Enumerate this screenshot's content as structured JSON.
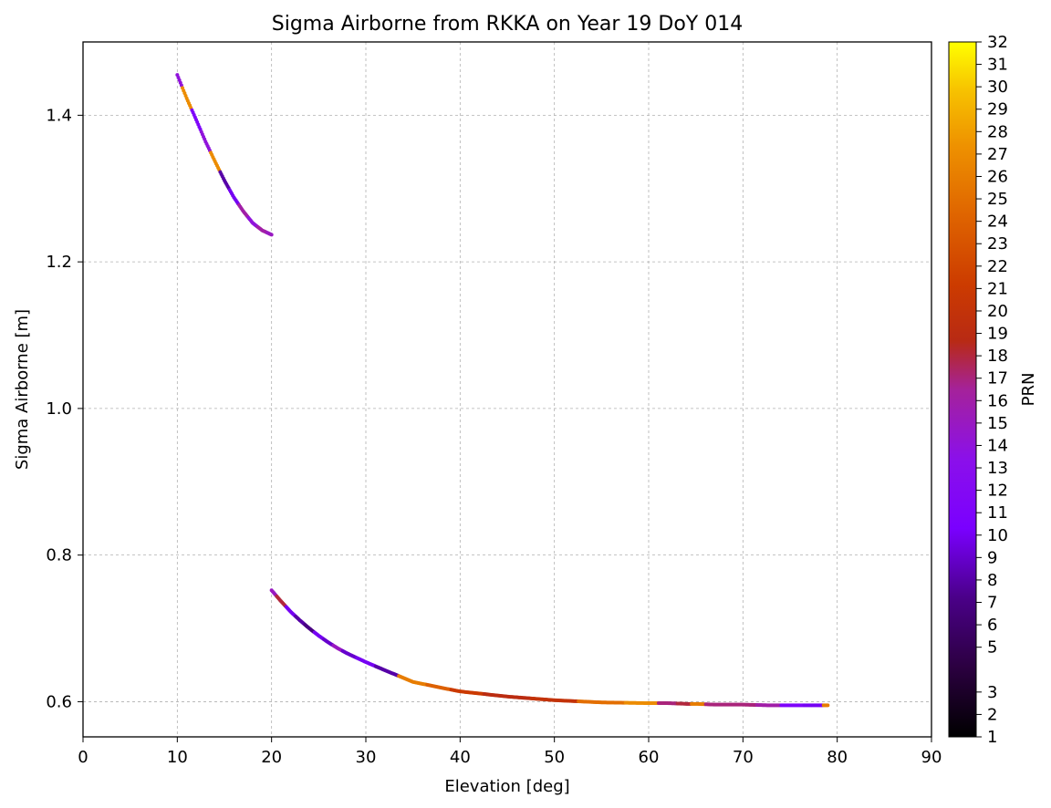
{
  "chart_data": {
    "type": "scatter",
    "title": "Sigma Airborne from RKKA on Year 19 DoY 014",
    "xlabel": "Elevation [deg]",
    "ylabel": "Sigma Airborne [m]",
    "xlim": [
      0,
      90
    ],
    "ylim": [
      0.552,
      1.5
    ],
    "x_ticks": [
      0,
      10,
      20,
      30,
      40,
      50,
      60,
      70,
      80,
      90
    ],
    "y_ticks": [
      0.6,
      0.8,
      1.0,
      1.2,
      1.4
    ],
    "x_tick_labels": [
      "0",
      "10",
      "20",
      "30",
      "40",
      "50",
      "60",
      "70",
      "80",
      "90"
    ],
    "y_tick_labels": [
      "0.6",
      "0.8",
      "1.0",
      "1.2",
      "1.4"
    ],
    "grid": true,
    "colorbar": {
      "label": "PRN",
      "colormap": "gnuplot",
      "range": [
        1,
        32
      ],
      "ticks": [
        1,
        2,
        3,
        5,
        6,
        7,
        8,
        9,
        10,
        11,
        12,
        13,
        14,
        15,
        16,
        17,
        18,
        19,
        20,
        21,
        22,
        23,
        24,
        25,
        26,
        27,
        28,
        29,
        30,
        31,
        32
      ],
      "tick_labels": [
        "1",
        "2",
        "3",
        "5",
        "6",
        "7",
        "8",
        "9",
        "10",
        "11",
        "12",
        "13",
        "14",
        "15",
        "16",
        "17",
        "18",
        "19",
        "20",
        "21",
        "22",
        "23",
        "24",
        "25",
        "26",
        "27",
        "28",
        "29",
        "30",
        "31",
        "32"
      ]
    },
    "series": [
      {
        "segment": "low-elevation",
        "x": [
          10,
          11,
          12,
          13,
          14,
          15,
          16,
          17,
          18,
          19,
          20
        ],
        "y": [
          1.455,
          1.423,
          1.394,
          1.364,
          1.337,
          1.311,
          1.288,
          1.269,
          1.253,
          1.243,
          1.237
        ],
        "prn": [
          14,
          27,
          11,
          14,
          27,
          8,
          10,
          16,
          14,
          16,
          15
        ]
      },
      {
        "segment": "high-elevation",
        "x": [
          20,
          21,
          22,
          23,
          24,
          25,
          26,
          27,
          28,
          30,
          32,
          35,
          38,
          40,
          45,
          50,
          55,
          60,
          62,
          64,
          65,
          67,
          70,
          73,
          75,
          78,
          79
        ],
        "y": [
          0.752,
          0.737,
          0.723,
          0.711,
          0.7,
          0.69,
          0.681,
          0.673,
          0.666,
          0.654,
          0.643,
          0.627,
          0.619,
          0.614,
          0.607,
          0.602,
          0.599,
          0.598,
          0.598,
          0.597,
          0.597,
          0.596,
          0.596,
          0.595,
          0.595,
          0.595,
          0.595
        ],
        "prn": [
          15,
          18,
          10,
          8,
          7,
          10,
          9,
          15,
          9,
          10,
          8,
          26,
          24,
          21,
          19,
          20,
          25,
          27,
          17,
          18,
          26,
          17,
          17,
          16,
          11,
          10,
          26
        ]
      }
    ]
  }
}
